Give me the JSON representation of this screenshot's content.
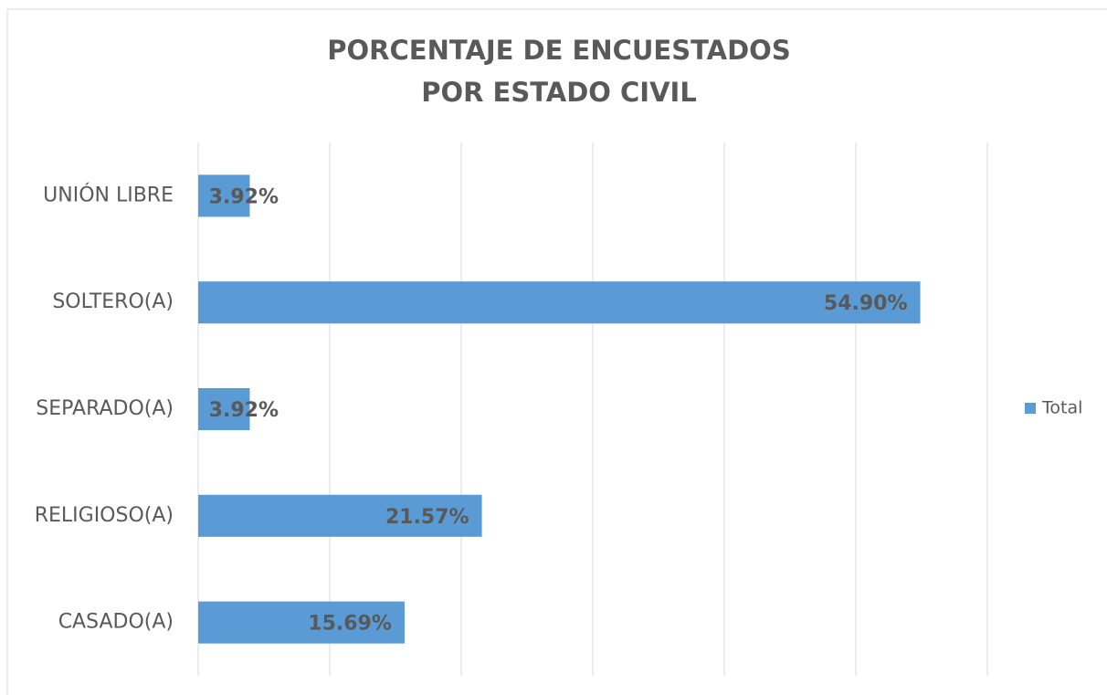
{
  "chart_data": {
    "type": "barh",
    "title": [
      "PORCENTAJE DE ENCUESTADOS",
      "POR ESTADO CIVIL"
    ],
    "categories": [
      "CASADO(A)",
      "RELIGIOSO(A)",
      "SEPARADO(A)",
      "SOLTERO(A)",
      "UNIÓN LIBRE"
    ],
    "series": [
      {
        "name": "Total",
        "color": "#5b9bd5",
        "values": [
          15.69,
          21.57,
          3.92,
          54.9,
          3.92
        ],
        "value_labels": [
          "15.69%",
          "21.57%",
          "3.92%",
          "54.90%",
          "3.92%"
        ]
      }
    ],
    "xlim": [
      0,
      60
    ],
    "xticks": [
      0,
      10,
      20,
      30,
      40,
      50,
      60
    ],
    "grid": true,
    "legend": "right"
  }
}
